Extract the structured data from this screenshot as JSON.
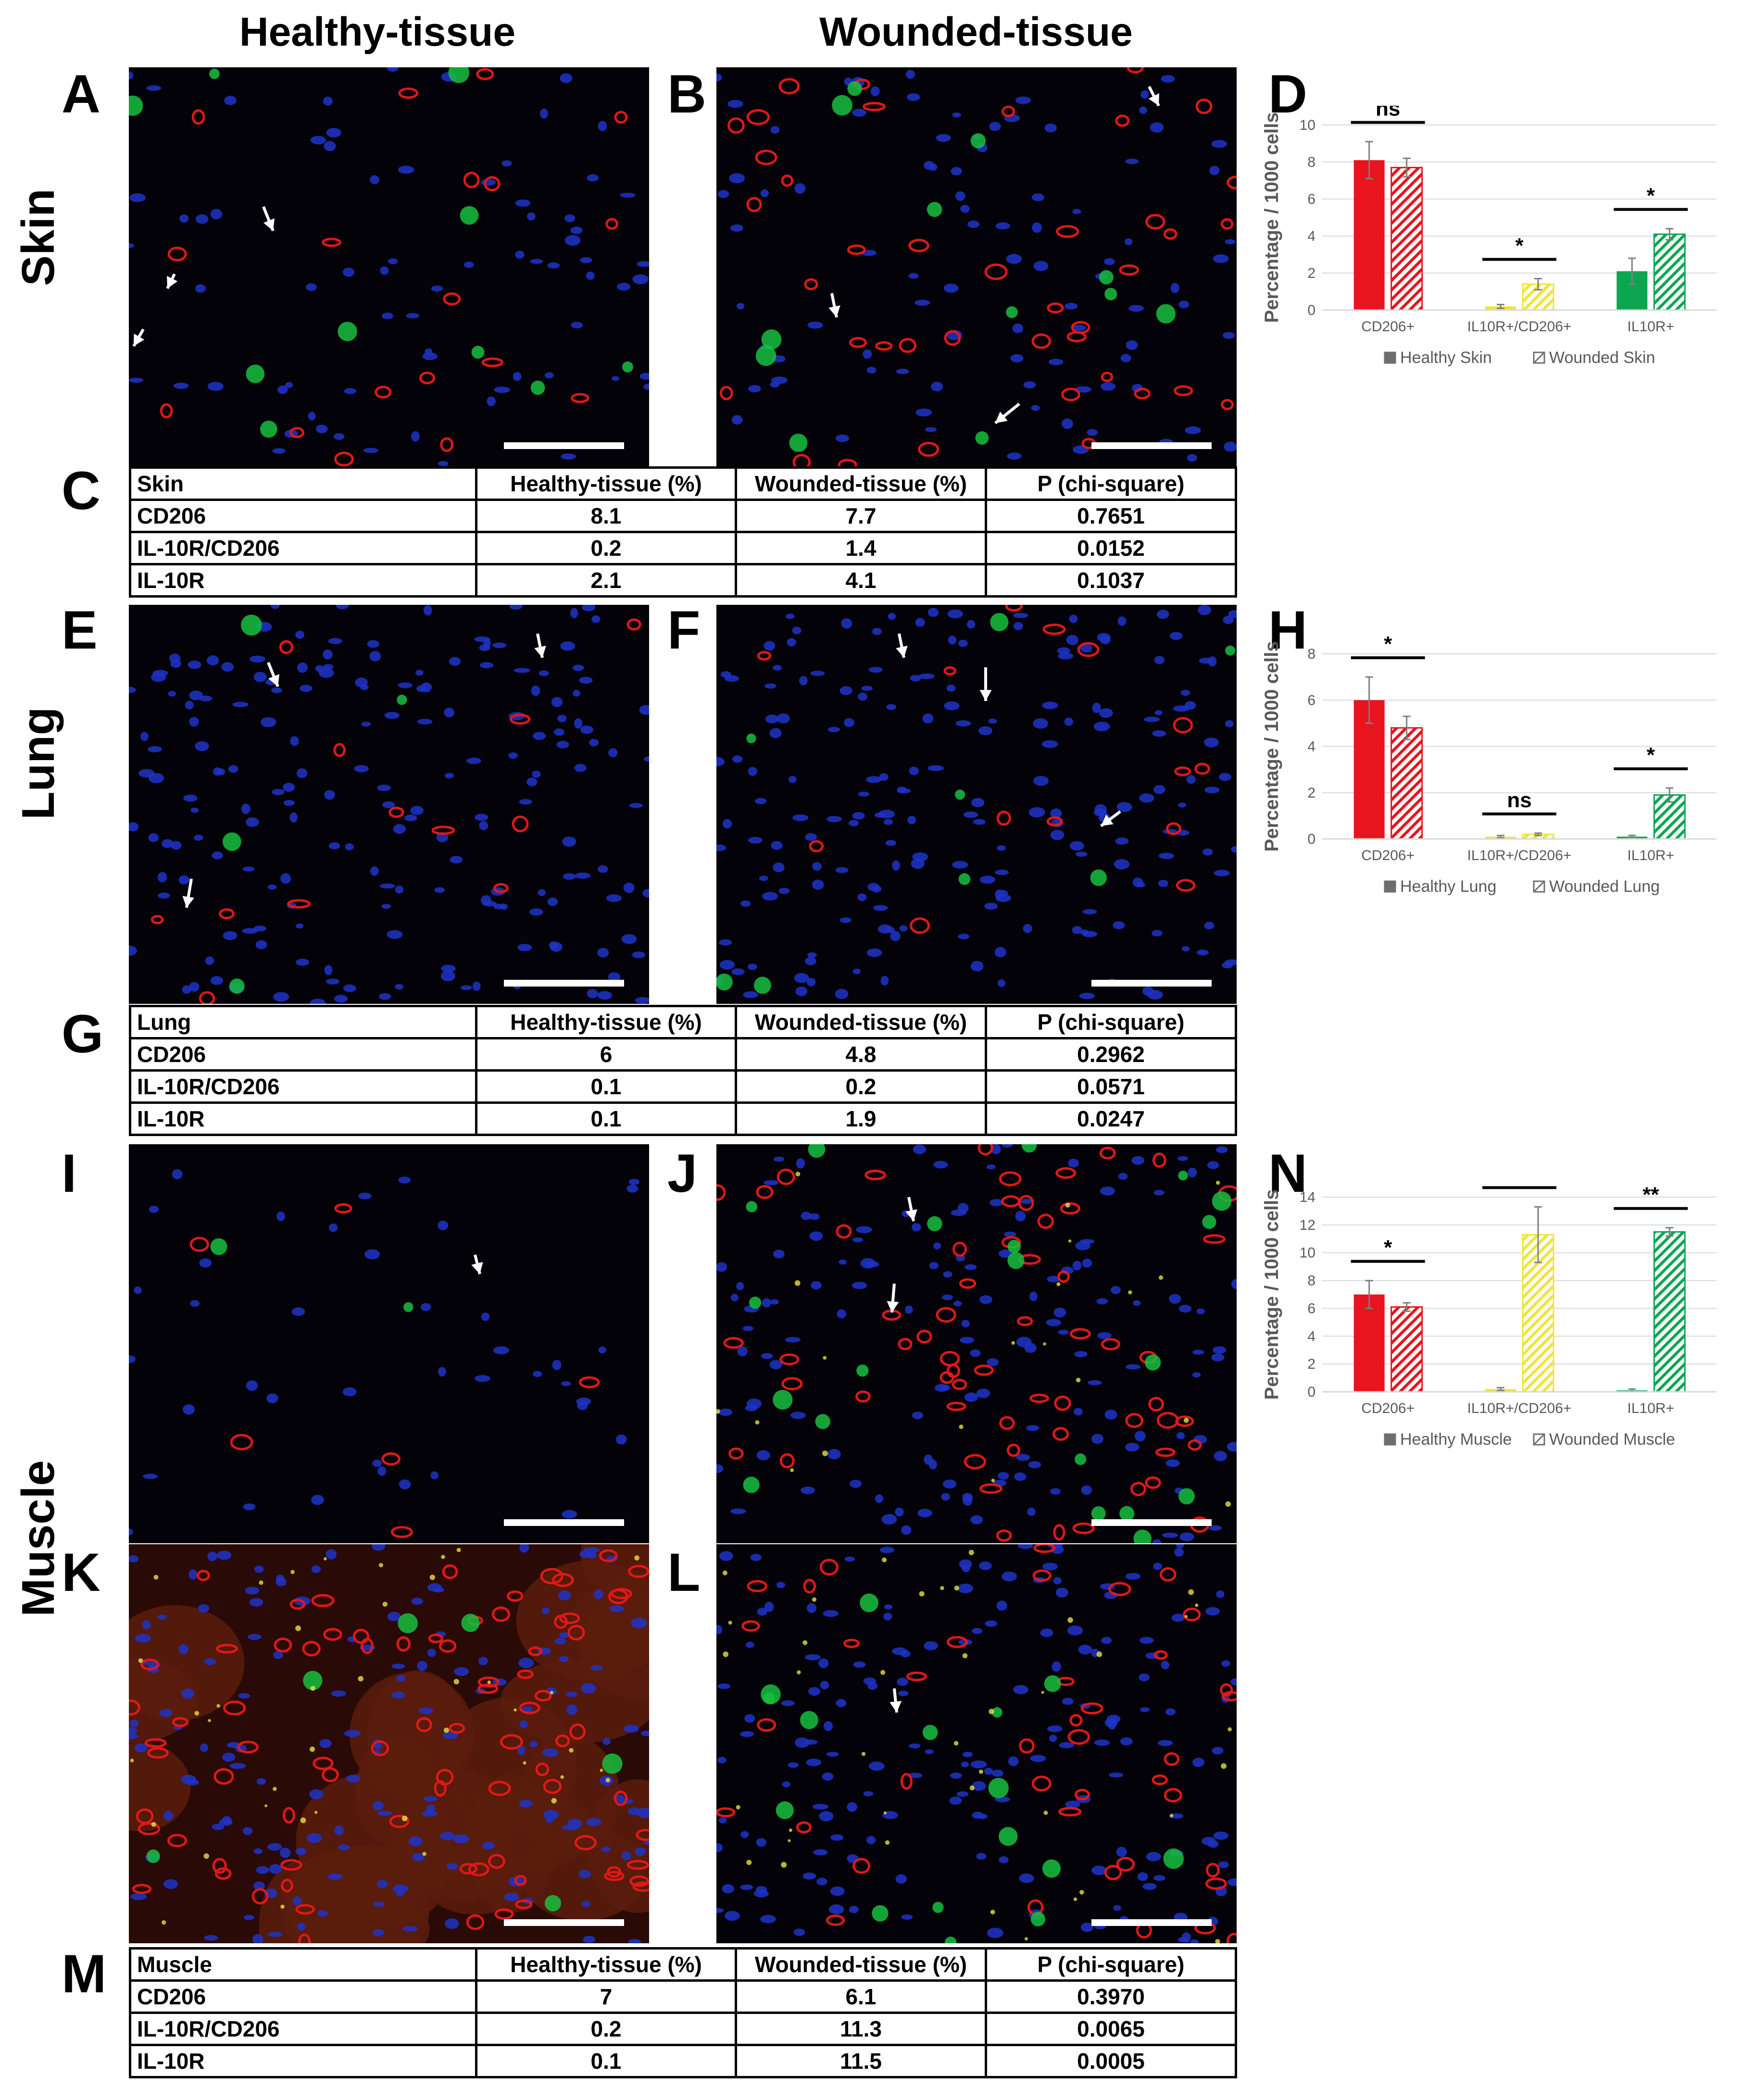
{
  "column_headers": {
    "healthy": "Healthy-tissue",
    "wounded": "Wounded-tissue"
  },
  "row_labels": {
    "skin": "Skin",
    "lung": "Lung",
    "muscle": "Muscle"
  },
  "panel_letters": {
    "A": "A",
    "B": "B",
    "C": "C",
    "D": "D",
    "E": "E",
    "F": "F",
    "G": "G",
    "H": "H",
    "I": "I",
    "J": "J",
    "K": "K",
    "L": "L",
    "M": "M",
    "N": "N"
  },
  "tables": [
    {
      "id": "C",
      "header": [
        "Skin",
        "Healthy-tissue (%)",
        "Wounded-tissue (%)",
        "P (chi-square)"
      ],
      "rows": [
        [
          "CD206",
          "8.1",
          "7.7",
          "0.7651"
        ],
        [
          "IL-10R/CD206",
          "0.2",
          "1.4",
          "0.0152"
        ],
        [
          "IL-10R",
          "2.1",
          "4.1",
          "0.1037"
        ]
      ]
    },
    {
      "id": "G",
      "header": [
        "Lung",
        "Healthy-tissue (%)",
        "Wounded-tissue (%)",
        "P (chi-square)"
      ],
      "rows": [
        [
          "CD206",
          "6",
          "4.8",
          "0.2962"
        ],
        [
          "IL-10R/CD206",
          "0.1",
          "0.2",
          "0.0571"
        ],
        [
          "IL-10R",
          "0.1",
          "1.9",
          "0.0247"
        ]
      ]
    },
    {
      "id": "M",
      "header": [
        "Muscle",
        "Healthy-tissue (%)",
        "Wounded-tissue (%)",
        "P (chi-square)"
      ],
      "rows": [
        [
          "CD206",
          "7",
          "6.1",
          "0.3970"
        ],
        [
          "IL-10R/CD206",
          "0.2",
          "11.3",
          "0.0065"
        ],
        [
          "IL-10R",
          "0.1",
          "11.5",
          "0.0005"
        ]
      ]
    }
  ],
  "chart_data": [
    {
      "id": "D",
      "type": "bar",
      "ylabel": "Percentage / 1000 cells",
      "ylim": [
        0,
        10
      ],
      "yticks": [
        0,
        2,
        4,
        6,
        8,
        10
      ],
      "categories": [
        "CD206+",
        "IL10R+/CD206+",
        "IL10R+"
      ],
      "series": [
        {
          "name": "Healthy Skin",
          "values": [
            8.1,
            0.2,
            2.1
          ],
          "errors": [
            1.0,
            0.1,
            0.7
          ]
        },
        {
          "name": "Wounded Skin",
          "values": [
            7.7,
            1.4,
            4.1
          ],
          "errors": [
            0.5,
            0.3,
            0.3
          ]
        }
      ],
      "colors": [
        "#e8141e",
        "#f0e43c",
        "#0ca651"
      ],
      "significance": [
        "ns",
        "*",
        "*"
      ],
      "legend": "bottom",
      "grid": true
    },
    {
      "id": "H",
      "type": "bar",
      "ylabel": "Percentage / 1000 cells",
      "ylim": [
        0,
        8
      ],
      "yticks": [
        0,
        2,
        4,
        6,
        8
      ],
      "categories": [
        "CD206+",
        "IL10R+/CD206+",
        "IL10R+"
      ],
      "series": [
        {
          "name": "Healthy Lung",
          "values": [
            6,
            0.1,
            0.1
          ],
          "errors": [
            1.0,
            0.05,
            0.05
          ]
        },
        {
          "name": "Wounded Lung",
          "values": [
            4.8,
            0.2,
            1.9
          ],
          "errors": [
            0.5,
            0.05,
            0.3
          ]
        }
      ],
      "colors": [
        "#e8141e",
        "#f0e43c",
        "#0ca651"
      ],
      "significance": [
        "*",
        "ns",
        "*"
      ],
      "legend": "bottom",
      "grid": true
    },
    {
      "id": "N",
      "type": "bar",
      "ylabel": "Percentage / 1000 cells",
      "ylim": [
        0,
        14
      ],
      "yticks": [
        0,
        2,
        4,
        6,
        8,
        10,
        12,
        14
      ],
      "categories": [
        "CD206+",
        "IL10R+/CD206+",
        "IL10R+"
      ],
      "series": [
        {
          "name": "Healthy Muscle",
          "values": [
            7,
            0.2,
            0.1
          ],
          "errors": [
            1.0,
            0.1,
            0.1
          ]
        },
        {
          "name": "Wounded Muscle",
          "values": [
            6.1,
            11.3,
            11.5
          ],
          "errors": [
            0.3,
            2.0,
            0.3
          ]
        }
      ],
      "colors": [
        "#e8141e",
        "#f0e43c",
        "#0ca651"
      ],
      "significance": [
        "*",
        "**",
        "**"
      ],
      "legend": "bottom",
      "grid": true
    }
  ]
}
